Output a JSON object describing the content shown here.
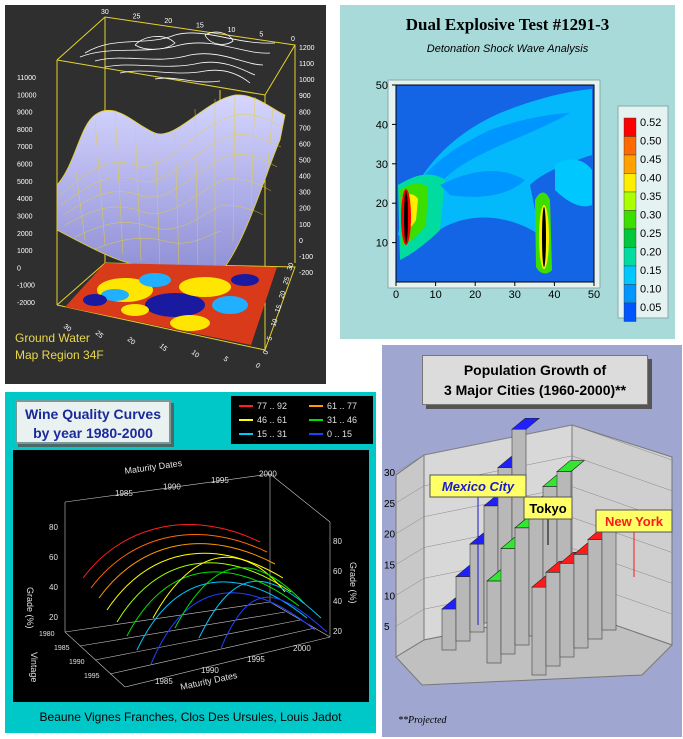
{
  "chart_data": [
    {
      "type": "surface",
      "annotation": [
        "Ground Water",
        "Map Region 34F"
      ],
      "z_ticks_left": [
        "11000",
        "10000",
        "9000",
        "8000",
        "7000",
        "6000",
        "5000",
        "4000",
        "3000",
        "2000",
        "1000",
        "0",
        "-1000",
        "-2000"
      ],
      "z_ticks_right": [
        "1200",
        "1100",
        "1000",
        "900",
        "800",
        "700",
        "600",
        "500",
        "400",
        "300",
        "200",
        "100",
        "0",
        "-100",
        "-200"
      ],
      "x_ticks_top": [
        "30",
        "25",
        "20",
        "15",
        "10",
        "5",
        "0"
      ],
      "x_ticks_bottom": [
        "30",
        "25",
        "20",
        "15",
        "10",
        "5",
        "0"
      ],
      "y_ticks_bottom": [
        "0",
        "5",
        "10",
        "15",
        "20",
        "25",
        "30"
      ],
      "zlim": [
        -2000,
        11000
      ]
    },
    {
      "type": "heatmap",
      "title": "Dual Explosive Test #1291-3",
      "subtitle": "Detonation Shock Wave Analysis",
      "xlim": [
        0,
        50
      ],
      "ylim": [
        0,
        50
      ],
      "x_ticks": [
        "0",
        "10",
        "20",
        "30",
        "40",
        "50"
      ],
      "y_ticks": [
        "10",
        "20",
        "30",
        "40",
        "50"
      ],
      "legend_levels": [
        "0.52",
        "0.50",
        "0.45",
        "0.40",
        "0.35",
        "0.30",
        "0.25",
        "0.20",
        "0.15",
        "0.10",
        "0.05"
      ],
      "legend_colors": [
        "#ff0000",
        "#ff6a00",
        "#ffa200",
        "#ffee00",
        "#aaff00",
        "#3cde00",
        "#00c83c",
        "#00dca0",
        "#00c8ff",
        "#0096ff",
        "#0055ff"
      ],
      "legend_placement": "right"
    },
    {
      "type": "line",
      "title": [
        "Wine Quality Curves",
        "by year 1980-2000"
      ],
      "legend": [
        {
          "label": "77 .. 92",
          "color": "#ff2020"
        },
        {
          "label": "61 .. 77",
          "color": "#ff9a00"
        },
        {
          "label": "46 .. 61",
          "color": "#ffff00"
        },
        {
          "label": "31 .. 46",
          "color": "#00e000"
        },
        {
          "label": "15 .. 31",
          "color": "#00c8ff"
        },
        {
          "label": "0 .. 15",
          "color": "#2040ff"
        }
      ],
      "legend_placement": "top-right",
      "axis_labels": {
        "x": "Maturity Dates",
        "y": "Grade (%)",
        "z": "Vintage"
      },
      "x_ticks": [
        "1985",
        "1990",
        "1995",
        "2000"
      ],
      "vintage_ticks": [
        "1980",
        "1985",
        "1990",
        "1995"
      ],
      "grade_ticks": [
        "20",
        "40",
        "60",
        "80"
      ],
      "footer": "Beaune Vignes Franches, Clos Des Ursules, Louis Jadot"
    },
    {
      "type": "bar3d",
      "title": [
        "Population Growth of",
        "3 Major Cities (1960-2000)**"
      ],
      "ylim": [
        0,
        30
      ],
      "y_ticks": [
        "5",
        "10",
        "15",
        "20",
        "25",
        "30"
      ],
      "series": [
        {
          "name": "Mexico City",
          "color": "#2020ff",
          "values": [
            7,
            11,
            15,
            20,
            25,
            30
          ]
        },
        {
          "name": "Tokyo",
          "color": "#33e633",
          "values": [
            14,
            18,
            20,
            22,
            24,
            25
          ]
        },
        {
          "name": "New York",
          "color": "#ff1a1a",
          "values": [
            15,
            16,
            16,
            16,
            17,
            17
          ]
        }
      ],
      "footnote": "**Projected"
    }
  ]
}
